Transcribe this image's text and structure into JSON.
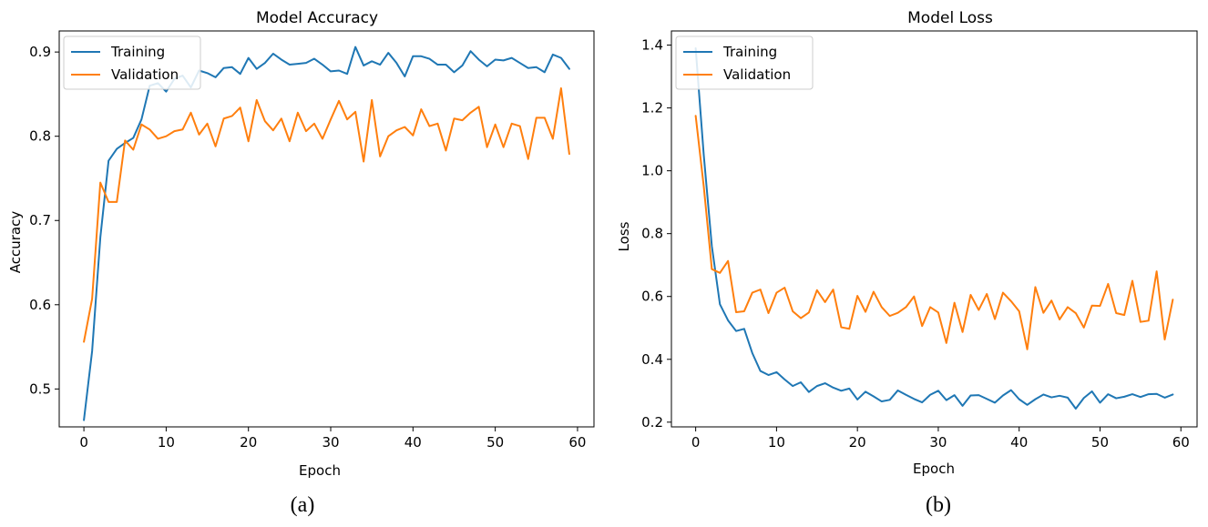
{
  "chart_data": [
    {
      "type": "line",
      "title": "Model Accuracy",
      "xlabel": "Epoch",
      "ylabel": "Accuracy",
      "xlim": [
        -3,
        62
      ],
      "ylim": [
        0.455,
        0.925
      ],
      "xticks": [
        0,
        10,
        20,
        30,
        40,
        50,
        60
      ],
      "yticks": [
        0.5,
        0.6,
        0.7,
        0.8,
        0.9
      ],
      "legend_position": "top-left",
      "caption": "(a)",
      "series": [
        {
          "name": "Training",
          "color": "#1f77b4",
          "x": [
            0,
            1,
            2,
            3,
            4,
            5,
            6,
            7,
            8,
            9,
            10,
            11,
            12,
            13,
            14,
            15,
            16,
            17,
            18,
            19,
            20,
            21,
            22,
            23,
            24,
            25,
            26,
            27,
            28,
            29,
            30,
            31,
            32,
            33,
            34,
            35,
            36,
            37,
            38,
            39,
            40,
            41,
            42,
            43,
            44,
            45,
            46,
            47,
            48,
            49,
            50,
            51,
            52,
            53,
            54,
            55,
            56,
            57,
            58,
            59
          ],
          "y": [
            0.463,
            0.545,
            0.68,
            0.771,
            0.785,
            0.792,
            0.798,
            0.82,
            0.86,
            0.863,
            0.853,
            0.868,
            0.872,
            0.858,
            0.878,
            0.875,
            0.87,
            0.881,
            0.882,
            0.874,
            0.893,
            0.88,
            0.887,
            0.898,
            0.891,
            0.885,
            0.886,
            0.887,
            0.892,
            0.885,
            0.877,
            0.878,
            0.874,
            0.906,
            0.884,
            0.889,
            0.885,
            0.899,
            0.887,
            0.871,
            0.895,
            0.895,
            0.892,
            0.885,
            0.885,
            0.876,
            0.884,
            0.901,
            0.891,
            0.883,
            0.891,
            0.89,
            0.893,
            0.887,
            0.881,
            0.882,
            0.876,
            0.897,
            0.893,
            0.88
          ]
        },
        {
          "name": "Validation",
          "color": "#ff7f0e",
          "x": [
            0,
            1,
            2,
            3,
            4,
            5,
            6,
            7,
            8,
            9,
            10,
            11,
            12,
            13,
            14,
            15,
            16,
            17,
            18,
            19,
            20,
            21,
            22,
            23,
            24,
            25,
            26,
            27,
            28,
            29,
            30,
            31,
            32,
            33,
            34,
            35,
            36,
            37,
            38,
            39,
            40,
            41,
            42,
            43,
            44,
            45,
            46,
            47,
            48,
            49,
            50,
            51,
            52,
            53,
            54,
            55,
            56,
            57,
            58,
            59
          ],
          "y": [
            0.556,
            0.607,
            0.745,
            0.722,
            0.722,
            0.795,
            0.784,
            0.814,
            0.808,
            0.797,
            0.8,
            0.806,
            0.808,
            0.828,
            0.802,
            0.815,
            0.788,
            0.821,
            0.824,
            0.834,
            0.794,
            0.843,
            0.818,
            0.807,
            0.821,
            0.794,
            0.828,
            0.806,
            0.815,
            0.797,
            0.82,
            0.842,
            0.82,
            0.829,
            0.77,
            0.843,
            0.776,
            0.8,
            0.807,
            0.811,
            0.801,
            0.832,
            0.812,
            0.815,
            0.783,
            0.821,
            0.819,
            0.828,
            0.835,
            0.787,
            0.814,
            0.787,
            0.815,
            0.812,
            0.773,
            0.822,
            0.822,
            0.797,
            0.857,
            0.779
          ]
        }
      ]
    },
    {
      "type": "line",
      "title": "Model Loss",
      "xlabel": "Epoch",
      "ylabel": "Loss",
      "xlim": [
        -3,
        62
      ],
      "ylim": [
        0.185,
        1.445
      ],
      "xticks": [
        0,
        10,
        20,
        30,
        40,
        50,
        60
      ],
      "yticks": [
        0.2,
        0.4,
        0.6,
        0.8,
        1.0,
        1.2,
        1.4
      ],
      "legend_position": "top-left",
      "caption": "(b)",
      "series": [
        {
          "name": "Training",
          "color": "#1f77b4",
          "x": [
            0,
            1,
            2,
            3,
            4,
            5,
            6,
            7,
            8,
            9,
            10,
            11,
            12,
            13,
            14,
            15,
            16,
            17,
            18,
            19,
            20,
            21,
            22,
            23,
            24,
            25,
            26,
            27,
            28,
            29,
            30,
            31,
            32,
            33,
            34,
            35,
            36,
            37,
            38,
            39,
            40,
            41,
            42,
            43,
            44,
            45,
            46,
            47,
            48,
            49,
            50,
            51,
            52,
            53,
            54,
            55,
            56,
            57,
            58,
            59
          ],
          "y": [
            1.39,
            1.05,
            0.76,
            0.575,
            0.524,
            0.49,
            0.497,
            0.42,
            0.363,
            0.35,
            0.359,
            0.336,
            0.315,
            0.327,
            0.296,
            0.315,
            0.324,
            0.31,
            0.3,
            0.307,
            0.272,
            0.297,
            0.282,
            0.266,
            0.271,
            0.301,
            0.287,
            0.274,
            0.263,
            0.287,
            0.3,
            0.27,
            0.286,
            0.252,
            0.285,
            0.286,
            0.274,
            0.262,
            0.285,
            0.302,
            0.273,
            0.255,
            0.273,
            0.288,
            0.279,
            0.284,
            0.278,
            0.243,
            0.277,
            0.298,
            0.262,
            0.289,
            0.276,
            0.281,
            0.289,
            0.28,
            0.289,
            0.29,
            0.278,
            0.288
          ]
        },
        {
          "name": "Validation",
          "color": "#ff7f0e",
          "x": [
            0,
            1,
            2,
            3,
            4,
            5,
            6,
            7,
            8,
            9,
            10,
            11,
            12,
            13,
            14,
            15,
            16,
            17,
            18,
            19,
            20,
            21,
            22,
            23,
            24,
            25,
            26,
            27,
            28,
            29,
            30,
            31,
            32,
            33,
            34,
            35,
            36,
            37,
            38,
            39,
            40,
            41,
            42,
            43,
            44,
            45,
            46,
            47,
            48,
            49,
            50,
            51,
            52,
            53,
            54,
            55,
            56,
            57,
            58,
            59
          ],
          "y": [
            1.175,
            0.95,
            0.687,
            0.675,
            0.713,
            0.55,
            0.553,
            0.612,
            0.622,
            0.547,
            0.612,
            0.628,
            0.553,
            0.531,
            0.549,
            0.62,
            0.582,
            0.622,
            0.502,
            0.497,
            0.602,
            0.551,
            0.615,
            0.566,
            0.538,
            0.548,
            0.566,
            0.6,
            0.506,
            0.566,
            0.549,
            0.452,
            0.58,
            0.487,
            0.605,
            0.557,
            0.608,
            0.528,
            0.612,
            0.585,
            0.553,
            0.432,
            0.63,
            0.548,
            0.587,
            0.527,
            0.566,
            0.547,
            0.501,
            0.571,
            0.57,
            0.64,
            0.547,
            0.541,
            0.65,
            0.519,
            0.523,
            0.68,
            0.463,
            0.59
          ]
        }
      ]
    }
  ]
}
